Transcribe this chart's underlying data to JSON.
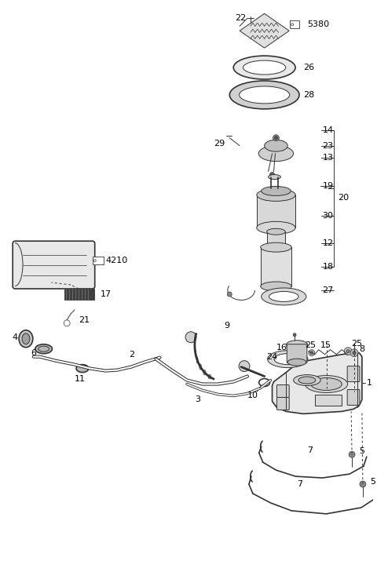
{
  "bg_color": "#ffffff",
  "line_color": "#333333",
  "label_color": "#000000",
  "fig_width": 4.8,
  "fig_height": 7.29,
  "dpi": 100
}
